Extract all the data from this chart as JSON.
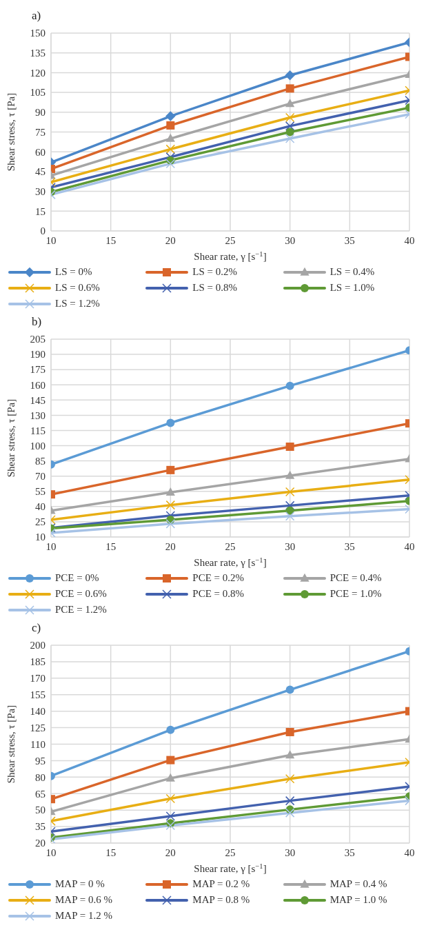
{
  "chart_data": [
    {
      "type": "line",
      "title": "a)",
      "xlabel": "Shear rate, γ [s$^{−1}$]",
      "ylabel": "Shear stress, τ [Pa]",
      "x": [
        10,
        20,
        30,
        40
      ],
      "xlim": [
        10,
        40
      ],
      "xticks": [
        10,
        15,
        20,
        25,
        30,
        35,
        40
      ],
      "ylim": [
        0,
        150
      ],
      "yticks": [
        0,
        15,
        30,
        45,
        60,
        75,
        90,
        105,
        120,
        135,
        150
      ],
      "grid": true,
      "legend": "bottom",
      "line_style": "solid",
      "series": [
        {
          "name": "LS = 0%",
          "color": "#4a86c8",
          "marker": "diamond",
          "values": [
            52,
            87,
            118,
            143
          ]
        },
        {
          "name": "LS = 0.2%",
          "color": "#d9652a",
          "marker": "square",
          "values": [
            47,
            80,
            108,
            132
          ]
        },
        {
          "name": "LS = 0.4%",
          "color": "#a5a5a5",
          "marker": "triangle",
          "values": [
            42,
            70,
            96.5,
            118.5
          ]
        },
        {
          "name": "LS = 0.6%",
          "color": "#e8ae14",
          "marker": "cross",
          "values": [
            37,
            62,
            86,
            106.5
          ]
        },
        {
          "name": "LS = 0.8%",
          "color": "#4361ae",
          "marker": "cross",
          "values": [
            33,
            56,
            79.5,
            99
          ]
        },
        {
          "name": "LS = 1.0%",
          "color": "#5f9a35",
          "marker": "circle",
          "values": [
            29.5,
            53.5,
            75,
            93.5
          ]
        },
        {
          "name": "LS = 1.2%",
          "color": "#a6c2e6",
          "marker": "cross",
          "values": [
            27.5,
            51,
            70,
            88.5
          ]
        }
      ]
    },
    {
      "type": "line",
      "title": "b)",
      "xlabel": "Shear rate, γ [s$^{−1}$]",
      "ylabel": "Shear stress, τ [Pa]",
      "x": [
        10,
        20,
        30,
        40
      ],
      "xlim": [
        10,
        40
      ],
      "xticks": [
        10,
        15,
        20,
        25,
        30,
        35,
        40
      ],
      "ylim": [
        10,
        205
      ],
      "yticks": [
        10,
        25,
        40,
        55,
        70,
        85,
        100,
        115,
        130,
        145,
        160,
        175,
        190,
        205
      ],
      "grid": true,
      "legend": "bottom",
      "line_style": "solid",
      "series": [
        {
          "name": "PCE = 0%",
          "color": "#5b9bd5",
          "marker": "circle",
          "values": [
            81.5,
            122.5,
            159,
            194
          ]
        },
        {
          "name": "PCE = 0.2%",
          "color": "#d9652a",
          "marker": "square",
          "values": [
            52,
            76,
            99,
            122
          ]
        },
        {
          "name": "PCE = 0.4%",
          "color": "#a5a5a5",
          "marker": "triangle",
          "values": [
            36,
            54,
            70.5,
            87
          ]
        },
        {
          "name": "PCE = 0.6%",
          "color": "#e8ae14",
          "marker": "cross",
          "values": [
            27,
            41.5,
            54.5,
            66.5
          ]
        },
        {
          "name": "PCE = 0.8%",
          "color": "#4361ae",
          "marker": "cross",
          "values": [
            19,
            31,
            41,
            51
          ]
        },
        {
          "name": "PCE = 1.0%",
          "color": "#5f9a35",
          "marker": "circle",
          "values": [
            18.5,
            27,
            36,
            45.5
          ]
        },
        {
          "name": "PCE = 1.2%",
          "color": "#a6c2e6",
          "marker": "cross",
          "values": [
            14,
            23,
            30.5,
            37.5
          ]
        }
      ]
    },
    {
      "type": "line",
      "title": "c)",
      "xlabel": "Shear rate, γ [s$^{−1}$]",
      "ylabel": "Shear stress, τ [Pa]",
      "x": [
        10,
        20,
        30,
        40
      ],
      "xlim": [
        10,
        40
      ],
      "xticks": [
        10,
        15,
        20,
        25,
        30,
        35,
        40
      ],
      "ylim": [
        20,
        200
      ],
      "yticks": [
        20,
        35,
        50,
        65,
        80,
        95,
        110,
        125,
        140,
        155,
        170,
        185,
        200
      ],
      "grid": true,
      "legend": "bottom",
      "line_style": "solid",
      "series": [
        {
          "name": "MAP = 0 %",
          "color": "#5b9bd5",
          "marker": "circle",
          "values": [
            81,
            123,
            159.5,
            194.5
          ]
        },
        {
          "name": "MAP = 0.2 %",
          "color": "#d9652a",
          "marker": "square",
          "values": [
            60,
            95.5,
            121,
            140
          ]
        },
        {
          "name": "MAP = 0.4 %",
          "color": "#a5a5a5",
          "marker": "triangle",
          "values": [
            48.5,
            79,
            100,
            114.5
          ]
        },
        {
          "name": "MAP = 0.6 %",
          "color": "#e8ae14",
          "marker": "cross",
          "values": [
            40,
            60.5,
            78.5,
            93.5
          ]
        },
        {
          "name": "MAP = 0.8 %",
          "color": "#4361ae",
          "marker": "cross",
          "values": [
            30.5,
            44.5,
            58.5,
            71.5
          ]
        },
        {
          "name": "MAP = 1.0 %",
          "color": "#5f9a35",
          "marker": "circle",
          "values": [
            25,
            38,
            50.5,
            62.5
          ]
        },
        {
          "name": "MAP = 1.2 %",
          "color": "#a6c2e6",
          "marker": "cross",
          "values": [
            23.5,
            36,
            47.5,
            58.5
          ]
        }
      ]
    }
  ]
}
